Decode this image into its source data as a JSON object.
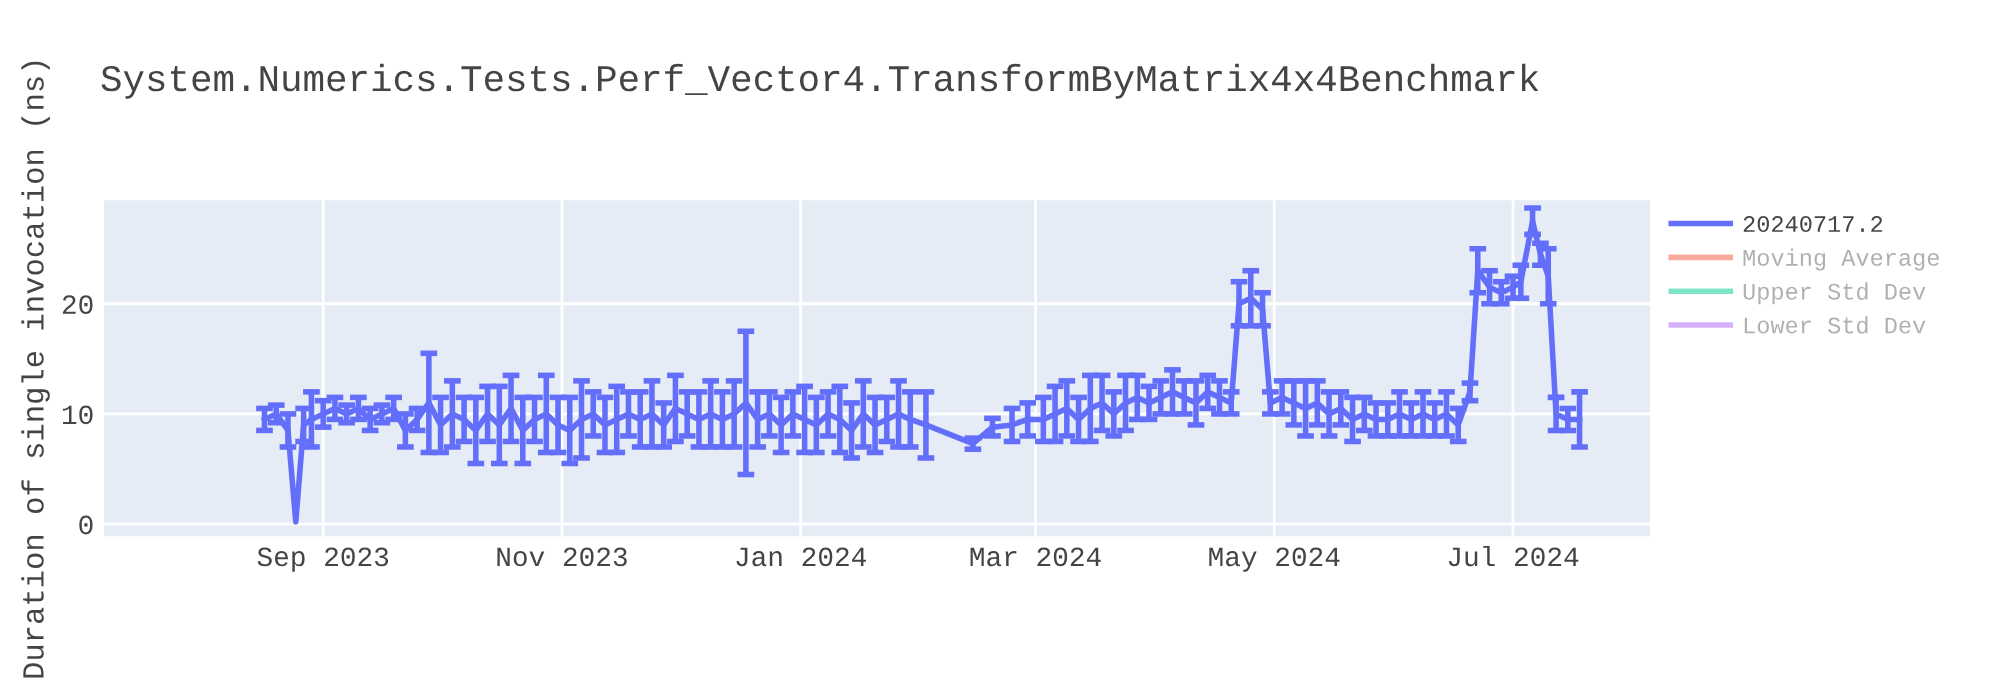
{
  "chart_data": {
    "type": "line",
    "title": "System.Numerics.Tests.Perf_Vector4.TransformByMatrix4x4Benchmark",
    "ylabel": "Duration of single invocation (ns)",
    "x": [
      "2023-08-17",
      "2023-08-20",
      "2023-08-23",
      "2023-08-25",
      "2023-08-27",
      "2023-08-29",
      "2023-09-01",
      "2023-09-04",
      "2023-09-07",
      "2023-09-10",
      "2023-09-13",
      "2023-09-16",
      "2023-09-19",
      "2023-09-22",
      "2023-09-25",
      "2023-09-28",
      "2023-10-01",
      "2023-10-04",
      "2023-10-07",
      "2023-10-10",
      "2023-10-13",
      "2023-10-16",
      "2023-10-19",
      "2023-10-22",
      "2023-10-25",
      "2023-10-28",
      "2023-10-31",
      "2023-11-03",
      "2023-11-06",
      "2023-11-09",
      "2023-11-12",
      "2023-11-15",
      "2023-11-18",
      "2023-11-21",
      "2023-11-24",
      "2023-11-27",
      "2023-11-30",
      "2023-12-03",
      "2023-12-06",
      "2023-12-09",
      "2023-12-12",
      "2023-12-15",
      "2023-12-18",
      "2023-12-21",
      "2023-12-24",
      "2023-12-27",
      "2023-12-30",
      "2024-01-02",
      "2024-01-05",
      "2024-01-08",
      "2024-01-11",
      "2024-01-14",
      "2024-01-17",
      "2024-01-20",
      "2024-01-23",
      "2024-01-26",
      "2024-01-29",
      "2024-02-02",
      "2024-02-14",
      "2024-02-19",
      "2024-02-24",
      "2024-02-28",
      "2024-03-03",
      "2024-03-06",
      "2024-03-09",
      "2024-03-12",
      "2024-03-15",
      "2024-03-18",
      "2024-03-21",
      "2024-03-24",
      "2024-03-27",
      "2024-03-30",
      "2024-04-02",
      "2024-04-05",
      "2024-04-08",
      "2024-04-11",
      "2024-04-14",
      "2024-04-17",
      "2024-04-20",
      "2024-04-22",
      "2024-04-25",
      "2024-04-28",
      "2024-04-30",
      "2024-05-03",
      "2024-05-06",
      "2024-05-09",
      "2024-05-12",
      "2024-05-15",
      "2024-05-18",
      "2024-05-21",
      "2024-05-24",
      "2024-05-27",
      "2024-05-30",
      "2024-06-02",
      "2024-06-05",
      "2024-06-08",
      "2024-06-11",
      "2024-06-14",
      "2024-06-17",
      "2024-06-20",
      "2024-06-22",
      "2024-06-25",
      "2024-06-28",
      "2024-07-01",
      "2024-07-03",
      "2024-07-06",
      "2024-07-08",
      "2024-07-10",
      "2024-07-12",
      "2024-07-15",
      "2024-07-18"
    ],
    "series": [
      {
        "name": "20240717.2",
        "color": "#636efa",
        "values": [
          9.5,
          10,
          8.5,
          0.2,
          9,
          9.5,
          10,
          10.5,
          10,
          10.5,
          9.5,
          10,
          10.5,
          8.5,
          9.5,
          11,
          9,
          10,
          9.5,
          8.5,
          10,
          9,
          10.5,
          8.5,
          9.5,
          10,
          9,
          8.5,
          9.5,
          10,
          9,
          9.5,
          10,
          9.5,
          10,
          9,
          10.5,
          10,
          9.5,
          10,
          9.5,
          10,
          11,
          9.5,
          10,
          9,
          10,
          9.5,
          9,
          10,
          9.5,
          8.5,
          10,
          9,
          9.5,
          10,
          9.5,
          9,
          7.3,
          8.8,
          9,
          9.5,
          9.5,
          10,
          10.5,
          9.5,
          10.5,
          11,
          10,
          11,
          11.5,
          11,
          11.5,
          12,
          11.5,
          11,
          12,
          11.5,
          11,
          20,
          20.5,
          19.5,
          11,
          11.5,
          11,
          10.5,
          11,
          10,
          10.5,
          9.5,
          10,
          9.5,
          9.5,
          10,
          9.5,
          10,
          9.5,
          10,
          9,
          12,
          23,
          21.5,
          21,
          21.5,
          22,
          27.5,
          24.5,
          22.5,
          10,
          9.5,
          9.5
        ],
        "errors": [
          1,
          0.8,
          1.5,
          null,
          1.5,
          2.5,
          1.2,
          1,
          0.8,
          1,
          1,
          0.8,
          1,
          1.5,
          1,
          4.5,
          2.5,
          3,
          2,
          3,
          2.5,
          3.5,
          3,
          3,
          2,
          3.5,
          2.5,
          3,
          3.5,
          2,
          2.5,
          3,
          2,
          2.5,
          3,
          2,
          3,
          2,
          2.5,
          3,
          2.5,
          3,
          6.5,
          2.5,
          2,
          2.5,
          2,
          3,
          2.5,
          2,
          3,
          2.5,
          3,
          2.5,
          2,
          3,
          2.5,
          3,
          0.5,
          0.8,
          1.5,
          1.5,
          2,
          2.5,
          2.5,
          2,
          3,
          2.5,
          2,
          2.5,
          2,
          1.5,
          1.5,
          2,
          1.5,
          2,
          1.5,
          1.5,
          1,
          2,
          2.5,
          1.5,
          1,
          1.5,
          2,
          2.5,
          2,
          2,
          1.5,
          2,
          1.5,
          1.5,
          1.5,
          2,
          1.5,
          2,
          1.5,
          2,
          1.5,
          0.8,
          2,
          1.5,
          1,
          1,
          1.5,
          1.2,
          1,
          2.5,
          1.5,
          1,
          2.5
        ]
      },
      {
        "name": "Moving Average",
        "color": "#ef553b",
        "values": [
          null,
          null,
          null,
          null,
          null,
          null,
          null,
          null,
          null,
          null,
          null,
          null,
          null,
          null,
          null,
          null,
          null,
          null,
          null,
          null,
          null,
          null,
          null,
          null,
          null,
          null,
          null,
          null,
          null,
          null,
          null,
          null,
          null,
          null,
          null,
          null,
          null,
          null,
          null,
          null,
          null,
          null,
          null,
          null,
          null,
          null,
          null,
          null,
          null,
          null,
          null,
          null,
          null,
          null,
          null,
          null,
          null,
          null,
          null,
          null,
          null,
          null,
          null,
          null,
          null,
          null,
          null,
          null,
          null,
          null,
          null,
          null,
          null,
          null,
          null,
          null,
          null,
          null,
          null,
          null,
          null,
          null,
          null,
          null,
          null,
          null,
          null,
          null,
          null,
          null,
          null,
          null,
          null,
          null,
          null,
          null,
          null,
          null,
          null,
          null,
          null,
          null,
          null,
          null,
          null,
          null,
          null,
          null,
          null,
          null,
          null
        ]
      },
      {
        "name": "Upper Std Dev",
        "color": "#00cc96",
        "values": [
          null,
          null,
          null,
          null,
          null,
          null,
          null,
          null,
          null,
          null,
          null,
          null,
          null,
          null,
          null,
          null,
          null,
          null,
          null,
          null,
          null,
          null,
          null,
          null,
          null,
          null,
          null,
          null,
          null,
          null,
          null,
          null,
          null,
          null,
          null,
          null,
          null,
          null,
          null,
          null,
          null,
          null,
          null,
          null,
          null,
          null,
          null,
          null,
          null,
          null,
          null,
          null,
          null,
          null,
          null,
          null,
          null,
          null,
          null,
          null,
          null,
          null,
          null,
          null,
          null,
          null,
          null,
          null,
          null,
          null,
          null,
          null,
          null,
          null,
          null,
          null,
          null,
          null,
          null,
          null,
          null,
          null,
          null,
          null,
          null,
          null,
          null,
          null,
          null,
          null,
          null,
          null,
          null,
          null,
          null,
          null,
          null,
          null,
          null,
          null,
          null,
          null,
          null,
          null,
          null,
          null,
          null,
          null,
          null,
          null,
          null
        ]
      },
      {
        "name": "Lower Std Dev",
        "color": "#ab63fa",
        "values": [
          null,
          null,
          null,
          null,
          null,
          null,
          null,
          null,
          null,
          null,
          null,
          null,
          null,
          null,
          null,
          null,
          null,
          null,
          null,
          null,
          null,
          null,
          null,
          null,
          null,
          null,
          null,
          null,
          null,
          null,
          null,
          null,
          null,
          null,
          null,
          null,
          null,
          null,
          null,
          null,
          null,
          null,
          null,
          null,
          null,
          null,
          null,
          null,
          null,
          null,
          null,
          null,
          null,
          null,
          null,
          null,
          null,
          null,
          null,
          null,
          null,
          null,
          null,
          null,
          null,
          null,
          null,
          null,
          null,
          null,
          null,
          null,
          null,
          null,
          null,
          null,
          null,
          null,
          null,
          null,
          null,
          null,
          null,
          null,
          null,
          null,
          null,
          null,
          null,
          null,
          null,
          null,
          null,
          null,
          null,
          null,
          null,
          null,
          null,
          null,
          null,
          null,
          null,
          null,
          null,
          null,
          null,
          null,
          null,
          null,
          null
        ]
      }
    ],
    "xlim": [
      "2023-07-07",
      "2024-08-05"
    ],
    "ylim": [
      -1.1,
      29.4
    ],
    "xticks": [
      {
        "value": "2023-09-01",
        "label": "Sep 2023"
      },
      {
        "value": "2023-11-01",
        "label": "Nov 2023"
      },
      {
        "value": "2024-01-01",
        "label": "Jan 2024"
      },
      {
        "value": "2024-03-01",
        "label": "Mar 2024"
      },
      {
        "value": "2024-05-01",
        "label": "May 2024"
      },
      {
        "value": "2024-07-01",
        "label": "Jul 2024"
      }
    ],
    "yticks": [
      0,
      10,
      20
    ],
    "grid": true,
    "legend": "right"
  }
}
